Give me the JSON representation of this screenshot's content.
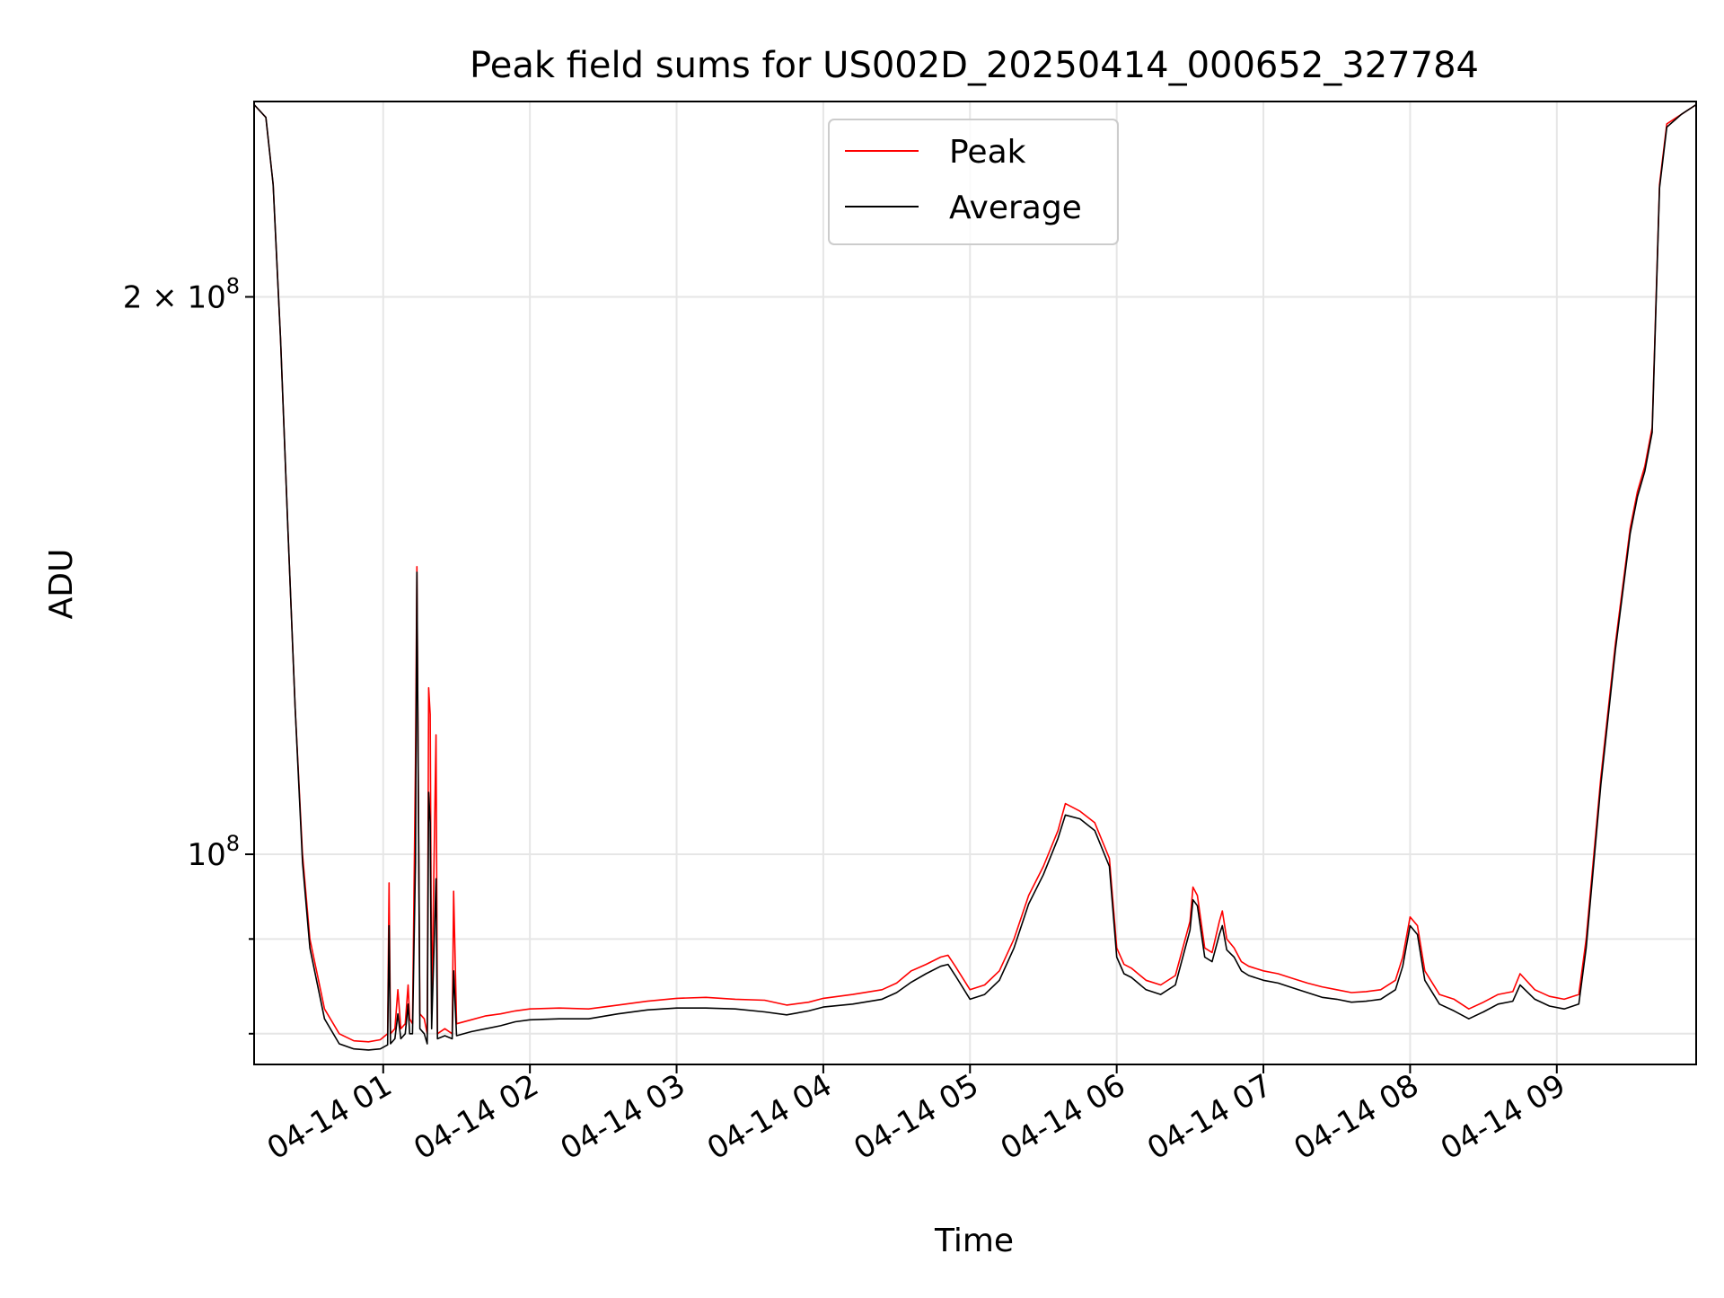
{
  "chart_data": {
    "type": "line",
    "title": "Peak field sums for US002D_20250414_000652_327784",
    "xlabel": "Time",
    "ylabel": "ADU",
    "x_unit": "hours after 2025-04-14 00:00",
    "x_range": [
      0.12,
      9.95
    ],
    "y_scale": "log",
    "y_range": [
      77000000,
      255000000
    ],
    "y_ticks": [
      {
        "value": 200000000,
        "label": "2 × 10^8",
        "mantissa": "2 × 10",
        "exponent": "8"
      },
      {
        "value": 100000000,
        "label": "10^8",
        "mantissa": "10",
        "exponent": "8"
      }
    ],
    "y_minor_ticks": [
      80000000,
      90000000
    ],
    "x_ticks": [
      {
        "value": 1,
        "label": "04-14 01"
      },
      {
        "value": 2,
        "label": "04-14 02"
      },
      {
        "value": 3,
        "label": "04-14 03"
      },
      {
        "value": 4,
        "label": "04-14 04"
      },
      {
        "value": 5,
        "label": "04-14 05"
      },
      {
        "value": 6,
        "label": "04-14 06"
      },
      {
        "value": 7,
        "label": "04-14 07"
      },
      {
        "value": 8,
        "label": "04-14 08"
      },
      {
        "value": 9,
        "label": "04-14 09"
      }
    ],
    "grid": true,
    "legend_position": "top-center",
    "series": [
      {
        "name": "Peak",
        "color": "#ff0000",
        "points": [
          [
            0.12,
            254000000
          ],
          [
            0.2,
            250000000
          ],
          [
            0.25,
            230000000
          ],
          [
            0.3,
            190000000
          ],
          [
            0.35,
            150000000
          ],
          [
            0.4,
            120000000
          ],
          [
            0.45,
            100000000
          ],
          [
            0.5,
            90000000
          ],
          [
            0.6,
            82500000
          ],
          [
            0.7,
            80000000
          ],
          [
            0.8,
            79300000
          ],
          [
            0.9,
            79200000
          ],
          [
            0.98,
            79400000
          ],
          [
            1.03,
            80000000
          ],
          [
            1.04,
            96500000
          ],
          [
            1.05,
            80000000
          ],
          [
            1.08,
            80500000
          ],
          [
            1.1,
            84500000
          ],
          [
            1.12,
            80500000
          ],
          [
            1.15,
            81000000
          ],
          [
            1.17,
            85000000
          ],
          [
            1.18,
            81500000
          ],
          [
            1.2,
            81000000
          ],
          [
            1.22,
            112000000
          ],
          [
            1.23,
            143000000
          ],
          [
            1.25,
            82000000
          ],
          [
            1.28,
            81500000
          ],
          [
            1.3,
            80000000
          ],
          [
            1.31,
            123000000
          ],
          [
            1.32,
            119000000
          ],
          [
            1.33,
            82000000
          ],
          [
            1.36,
            116000000
          ],
          [
            1.37,
            80000000
          ],
          [
            1.42,
            80500000
          ],
          [
            1.47,
            80000000
          ],
          [
            1.48,
            95500000
          ],
          [
            1.5,
            81000000
          ],
          [
            1.6,
            81400000
          ],
          [
            1.7,
            81800000
          ],
          [
            1.8,
            82000000
          ],
          [
            1.9,
            82300000
          ],
          [
            2.0,
            82500000
          ],
          [
            2.2,
            82600000
          ],
          [
            2.4,
            82500000
          ],
          [
            2.6,
            82900000
          ],
          [
            2.8,
            83300000
          ],
          [
            3.0,
            83600000
          ],
          [
            3.2,
            83700000
          ],
          [
            3.4,
            83500000
          ],
          [
            3.6,
            83400000
          ],
          [
            3.75,
            82900000
          ],
          [
            3.9,
            83200000
          ],
          [
            4.0,
            83600000
          ],
          [
            4.2,
            84000000
          ],
          [
            4.4,
            84500000
          ],
          [
            4.5,
            85200000
          ],
          [
            4.6,
            86500000
          ],
          [
            4.7,
            87200000
          ],
          [
            4.8,
            88000000
          ],
          [
            4.85,
            88200000
          ],
          [
            4.9,
            87000000
          ],
          [
            5.0,
            84500000
          ],
          [
            5.1,
            85000000
          ],
          [
            5.2,
            86500000
          ],
          [
            5.3,
            90000000
          ],
          [
            5.4,
            95000000
          ],
          [
            5.5,
            98500000
          ],
          [
            5.6,
            103000000
          ],
          [
            5.65,
            106500000
          ],
          [
            5.75,
            105500000
          ],
          [
            5.85,
            104000000
          ],
          [
            5.95,
            99500000
          ],
          [
            6.0,
            89000000
          ],
          [
            6.05,
            87200000
          ],
          [
            6.1,
            86800000
          ],
          [
            6.2,
            85500000
          ],
          [
            6.3,
            85000000
          ],
          [
            6.4,
            86000000
          ],
          [
            6.5,
            92000000
          ],
          [
            6.52,
            96000000
          ],
          [
            6.55,
            95000000
          ],
          [
            6.6,
            89000000
          ],
          [
            6.65,
            88500000
          ],
          [
            6.7,
            92000000
          ],
          [
            6.72,
            93200000
          ],
          [
            6.75,
            90000000
          ],
          [
            6.8,
            89000000
          ],
          [
            6.85,
            87500000
          ],
          [
            6.9,
            87000000
          ],
          [
            7.0,
            86500000
          ],
          [
            7.1,
            86200000
          ],
          [
            7.2,
            85700000
          ],
          [
            7.3,
            85200000
          ],
          [
            7.4,
            84800000
          ],
          [
            7.5,
            84500000
          ],
          [
            7.6,
            84200000
          ],
          [
            7.7,
            84300000
          ],
          [
            7.8,
            84500000
          ],
          [
            7.9,
            85500000
          ],
          [
            7.95,
            88000000
          ],
          [
            8.0,
            92500000
          ],
          [
            8.05,
            91500000
          ],
          [
            8.1,
            86500000
          ],
          [
            8.2,
            84000000
          ],
          [
            8.3,
            83500000
          ],
          [
            8.4,
            82500000
          ],
          [
            8.5,
            83200000
          ],
          [
            8.6,
            84000000
          ],
          [
            8.7,
            84300000
          ],
          [
            8.75,
            86200000
          ],
          [
            8.85,
            84500000
          ],
          [
            8.95,
            83800000
          ],
          [
            9.05,
            83500000
          ],
          [
            9.15,
            84000000
          ],
          [
            9.2,
            90000000
          ],
          [
            9.3,
            110000000
          ],
          [
            9.4,
            130000000
          ],
          [
            9.5,
            150000000
          ],
          [
            9.55,
            157000000
          ],
          [
            9.6,
            162000000
          ],
          [
            9.65,
            170000000
          ],
          [
            9.7,
            230000000
          ],
          [
            9.75,
            248000000
          ],
          [
            9.85,
            251000000
          ],
          [
            9.95,
            254000000
          ]
        ]
      },
      {
        "name": "Average",
        "color": "#000000",
        "points": [
          [
            0.12,
            254000000
          ],
          [
            0.2,
            250000000
          ],
          [
            0.25,
            230000000
          ],
          [
            0.3,
            190000000
          ],
          [
            0.35,
            150000000
          ],
          [
            0.4,
            120000000
          ],
          [
            0.45,
            99000000
          ],
          [
            0.5,
            89000000
          ],
          [
            0.6,
            81500000
          ],
          [
            0.7,
            79000000
          ],
          [
            0.8,
            78500000
          ],
          [
            0.9,
            78400000
          ],
          [
            0.98,
            78500000
          ],
          [
            1.03,
            78900000
          ],
          [
            1.04,
            91500000
          ],
          [
            1.05,
            79000000
          ],
          [
            1.08,
            79500000
          ],
          [
            1.1,
            82000000
          ],
          [
            1.12,
            79500000
          ],
          [
            1.15,
            80000000
          ],
          [
            1.17,
            83000000
          ],
          [
            1.18,
            80000000
          ],
          [
            1.2,
            80000000
          ],
          [
            1.22,
            99000000
          ],
          [
            1.23,
            142000000
          ],
          [
            1.25,
            80500000
          ],
          [
            1.28,
            80000000
          ],
          [
            1.3,
            79000000
          ],
          [
            1.31,
            108000000
          ],
          [
            1.32,
            104000000
          ],
          [
            1.33,
            80500000
          ],
          [
            1.36,
            97000000
          ],
          [
            1.37,
            79500000
          ],
          [
            1.42,
            79800000
          ],
          [
            1.47,
            79500000
          ],
          [
            1.48,
            86500000
          ],
          [
            1.5,
            79800000
          ],
          [
            1.6,
            80200000
          ],
          [
            1.7,
            80500000
          ],
          [
            1.8,
            80800000
          ],
          [
            1.9,
            81200000
          ],
          [
            2.0,
            81400000
          ],
          [
            2.2,
            81500000
          ],
          [
            2.4,
            81500000
          ],
          [
            2.6,
            82000000
          ],
          [
            2.8,
            82400000
          ],
          [
            3.0,
            82600000
          ],
          [
            3.2,
            82600000
          ],
          [
            3.4,
            82500000
          ],
          [
            3.6,
            82200000
          ],
          [
            3.75,
            81900000
          ],
          [
            3.9,
            82300000
          ],
          [
            4.0,
            82700000
          ],
          [
            4.2,
            83000000
          ],
          [
            4.4,
            83500000
          ],
          [
            4.5,
            84200000
          ],
          [
            4.6,
            85300000
          ],
          [
            4.7,
            86200000
          ],
          [
            4.8,
            87000000
          ],
          [
            4.85,
            87200000
          ],
          [
            4.9,
            86000000
          ],
          [
            5.0,
            83500000
          ],
          [
            5.1,
            84000000
          ],
          [
            5.2,
            85500000
          ],
          [
            5.3,
            89000000
          ],
          [
            5.4,
            94000000
          ],
          [
            5.5,
            97500000
          ],
          [
            5.6,
            102000000
          ],
          [
            5.65,
            105000000
          ],
          [
            5.75,
            104500000
          ],
          [
            5.85,
            103000000
          ],
          [
            5.95,
            98500000
          ],
          [
            6.0,
            88000000
          ],
          [
            6.05,
            86200000
          ],
          [
            6.1,
            85800000
          ],
          [
            6.2,
            84500000
          ],
          [
            6.3,
            84000000
          ],
          [
            6.4,
            85000000
          ],
          [
            6.5,
            91000000
          ],
          [
            6.52,
            94500000
          ],
          [
            6.55,
            93800000
          ],
          [
            6.6,
            88000000
          ],
          [
            6.65,
            87500000
          ],
          [
            6.7,
            90500000
          ],
          [
            6.72,
            91500000
          ],
          [
            6.75,
            88800000
          ],
          [
            6.8,
            88000000
          ],
          [
            6.85,
            86500000
          ],
          [
            6.9,
            86000000
          ],
          [
            7.0,
            85500000
          ],
          [
            7.1,
            85200000
          ],
          [
            7.2,
            84700000
          ],
          [
            7.3,
            84200000
          ],
          [
            7.4,
            83700000
          ],
          [
            7.5,
            83500000
          ],
          [
            7.6,
            83200000
          ],
          [
            7.7,
            83300000
          ],
          [
            7.8,
            83500000
          ],
          [
            7.9,
            84500000
          ],
          [
            7.95,
            87000000
          ],
          [
            8.0,
            91500000
          ],
          [
            8.05,
            90500000
          ],
          [
            8.1,
            85500000
          ],
          [
            8.2,
            83000000
          ],
          [
            8.3,
            82300000
          ],
          [
            8.4,
            81500000
          ],
          [
            8.5,
            82200000
          ],
          [
            8.6,
            83000000
          ],
          [
            8.7,
            83300000
          ],
          [
            8.75,
            85000000
          ],
          [
            8.85,
            83500000
          ],
          [
            8.95,
            82800000
          ],
          [
            9.05,
            82500000
          ],
          [
            9.15,
            83000000
          ],
          [
            9.2,
            89000000
          ],
          [
            9.3,
            109000000
          ],
          [
            9.4,
            129000000
          ],
          [
            9.5,
            149000000
          ],
          [
            9.55,
            156000000
          ],
          [
            9.6,
            161000000
          ],
          [
            9.65,
            169000000
          ],
          [
            9.7,
            229000000
          ],
          [
            9.75,
            247000000
          ],
          [
            9.85,
            251000000
          ],
          [
            9.95,
            254000000
          ]
        ]
      }
    ]
  }
}
